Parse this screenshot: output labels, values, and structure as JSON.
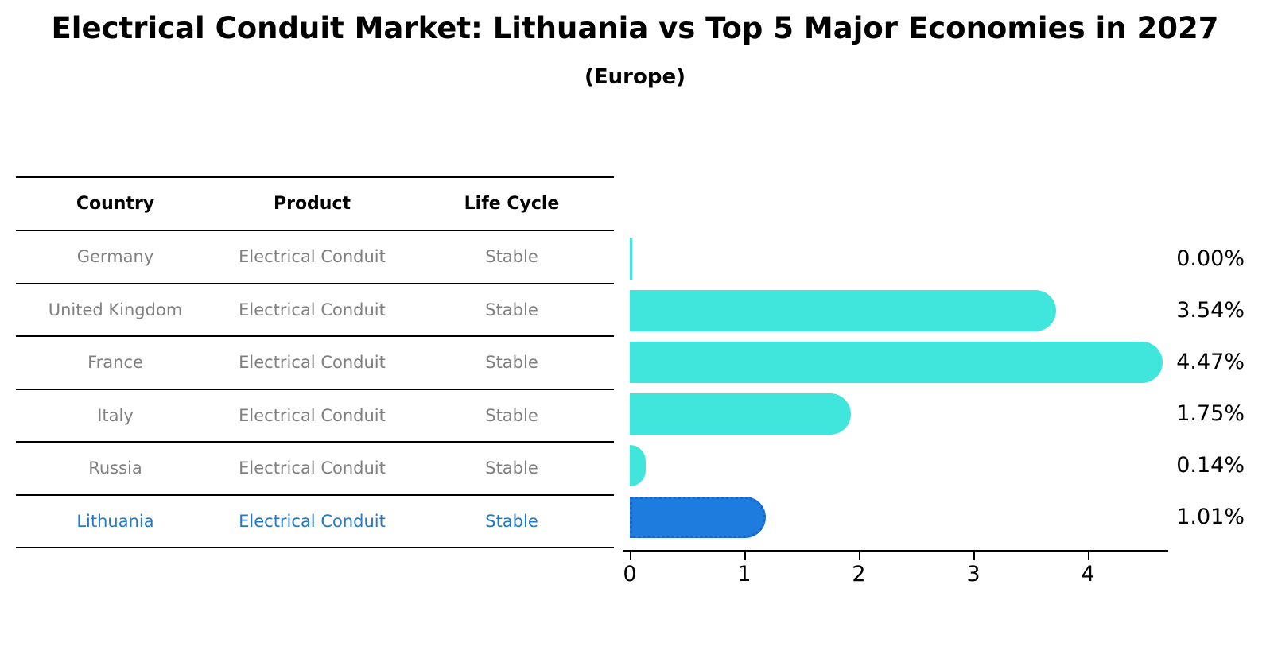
{
  "title": "Electrical Conduit Market: Lithuania vs Top 5 Major Economies in 2027",
  "subtitle": "(Europe)",
  "table": {
    "headers": [
      "Country",
      "Product",
      "Life Cycle"
    ],
    "rows": [
      {
        "country": "Germany",
        "product": "Electrical Conduit",
        "life_cycle": "Stable",
        "highlight": false
      },
      {
        "country": "United Kingdom",
        "product": "Electrical Conduit",
        "life_cycle": "Stable",
        "highlight": false
      },
      {
        "country": "France",
        "product": "Electrical Conduit",
        "life_cycle": "Stable",
        "highlight": false
      },
      {
        "country": "Italy",
        "product": "Electrical Conduit",
        "life_cycle": "Stable",
        "highlight": false
      },
      {
        "country": "Russia",
        "product": "Electrical Conduit",
        "life_cycle": "Stable",
        "highlight": false
      },
      {
        "country": "Lithuania",
        "product": "Electrical Conduit",
        "life_cycle": "Stable",
        "highlight": true
      }
    ]
  },
  "chart_data": {
    "type": "bar",
    "orientation": "horizontal",
    "title": "Electrical Conduit Market: Lithuania vs Top 5 Major Economies in 2027",
    "subtitle": "(Europe)",
    "categories": [
      "Germany",
      "United Kingdom",
      "France",
      "Italy",
      "Russia",
      "Lithuania"
    ],
    "values": [
      0.0,
      3.54,
      4.47,
      1.75,
      0.14,
      1.01
    ],
    "value_labels": [
      "0.00%",
      "3.54%",
      "4.47%",
      "1.75%",
      "0.14%",
      "1.01%"
    ],
    "x_ticks": [
      "0",
      "1",
      "2",
      "3",
      "4"
    ],
    "xlim": [
      0,
      4.7
    ],
    "grid": false,
    "legend": "none",
    "unit": "percent"
  },
  "colors": {
    "bar_default": "#40E5DC",
    "bar_highlight": "#1F7CDF",
    "bar_highlight_border": "#1563CB",
    "highlight_text": "#2478C8",
    "table_text": "#808080",
    "axis": "#000000"
  }
}
